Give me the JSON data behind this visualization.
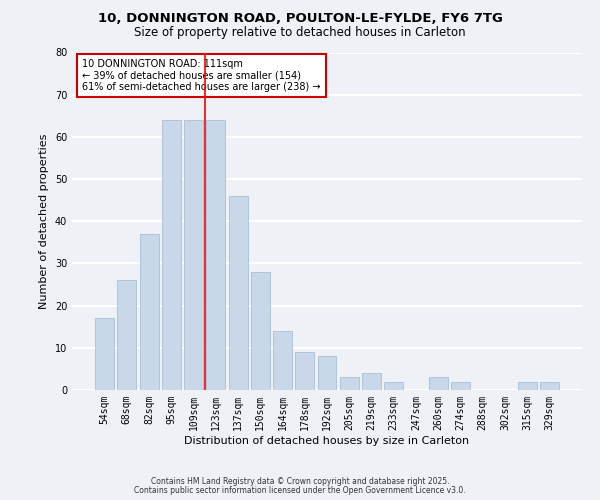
{
  "title": "10, DONNINGTON ROAD, POULTON-LE-FYLDE, FY6 7TG",
  "subtitle": "Size of property relative to detached houses in Carleton",
  "xlabel": "Distribution of detached houses by size in Carleton",
  "ylabel": "Number of detached properties",
  "categories": [
    "54sqm",
    "68sqm",
    "82sqm",
    "95sqm",
    "109sqm",
    "123sqm",
    "137sqm",
    "150sqm",
    "164sqm",
    "178sqm",
    "192sqm",
    "205sqm",
    "219sqm",
    "233sqm",
    "247sqm",
    "260sqm",
    "274sqm",
    "288sqm",
    "302sqm",
    "315sqm",
    "329sqm"
  ],
  "values": [
    17,
    26,
    37,
    64,
    64,
    64,
    46,
    28,
    14,
    9,
    8,
    3,
    4,
    2,
    0,
    3,
    2,
    0,
    0,
    2,
    2
  ],
  "bar_color": "#c8d8e8",
  "bar_edge_color": "#a8c0d8",
  "vline_x": 4.5,
  "vline_color": "red",
  "annotation_line1": "10 DONNINGTON ROAD: 111sqm",
  "annotation_line2": "← 39% of detached houses are smaller (154)",
  "annotation_line3": "61% of semi-detached houses are larger (238) →",
  "annotation_box_color": "white",
  "annotation_box_edge": "#cc0000",
  "ylim": [
    0,
    80
  ],
  "footer1": "Contains HM Land Registry data © Crown copyright and database right 2025.",
  "footer2": "Contains public sector information licensed under the Open Government Licence v3.0.",
  "bg_color": "#eef2f7",
  "grid_color": "white",
  "title_fontsize": 9.5,
  "subtitle_fontsize": 8.5
}
